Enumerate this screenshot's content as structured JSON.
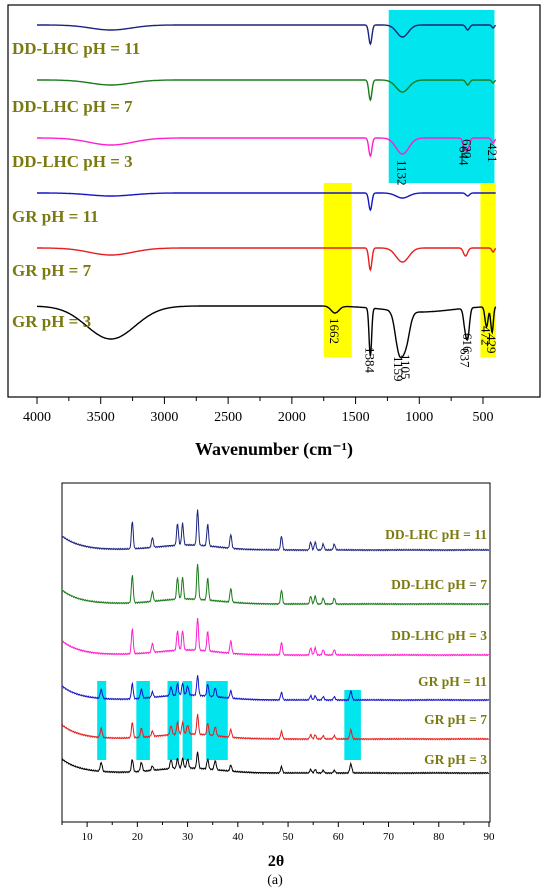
{
  "chart_data": [
    {
      "type": "line",
      "panel": "ftir",
      "xlabel": "Wavenumber (cm⁻¹)",
      "xlim": [
        4000,
        400
      ],
      "x_ticks": [
        4000,
        3500,
        3000,
        2500,
        2000,
        1500,
        1000,
        500
      ],
      "series": [
        {
          "name": "DD-LHC pH = 11",
          "color": "#1a237e"
        },
        {
          "name": "DD-LHC pH = 7",
          "color": "#1b7a1b"
        },
        {
          "name": "DD-LHC pH = 3",
          "color": "#ff1ecf"
        },
        {
          "name": "GR pH = 11",
          "color": "#1515c8"
        },
        {
          "name": "GR pH = 7",
          "color": "#e61e1e"
        },
        {
          "name": "GR pH = 3",
          "color": "#000000"
        }
      ],
      "peak_labels": [
        {
          "series": "DD-LHC pH = 3",
          "labels": [
            "1132",
            "644",
            "620",
            "421"
          ]
        },
        {
          "series": "GR pH = 3",
          "labels": [
            "1662",
            "1384",
            "1159",
            "1105",
            "637",
            "616",
            "472",
            "429"
          ]
        }
      ],
      "highlights": [
        {
          "color": "#00e5ee",
          "x_range": [
            1240,
            410
          ],
          "spans": "DD-LHC"
        },
        {
          "color": "#ffff00",
          "x_range": [
            1750,
            1530
          ],
          "spans": "GR"
        },
        {
          "color": "#ffff00",
          "x_range": [
            520,
            400
          ],
          "spans": "GR"
        }
      ]
    },
    {
      "type": "line",
      "panel": "xrd",
      "xlabel": "2θ",
      "xlim": [
        5,
        90
      ],
      "x_ticks": [
        10,
        20,
        30,
        40,
        50,
        60,
        70,
        80,
        90
      ],
      "series": [
        {
          "name": "DD-LHC pH = 11",
          "color": "#1a237e"
        },
        {
          "name": "DD-LHC pH = 7",
          "color": "#1b7a1b"
        },
        {
          "name": "DD-LHC pH = 3",
          "color": "#ff1ecf"
        },
        {
          "name": "GR pH = 11",
          "color": "#1515c8"
        },
        {
          "name": "GR pH = 7",
          "color": "#e61e1e"
        },
        {
          "name": "GR pH = 3",
          "color": "#000000"
        }
      ],
      "peaks_2theta": [
        19.0,
        23.0,
        28.0,
        29.0,
        32.0,
        34.0,
        38.6,
        48.7,
        54.5,
        55.4,
        57.0,
        59.2
      ],
      "gr_extra_peaks_2theta": [
        12.8,
        20.8,
        26.7,
        30.0,
        35.5,
        62.5
      ],
      "highlights": [
        {
          "color": "#00e5ee",
          "x_range": [
            12.0,
            13.8
          ]
        },
        {
          "color": "#00e5ee",
          "x_range": [
            19.8,
            22.5
          ]
        },
        {
          "color": "#00e5ee",
          "x_range": [
            26.0,
            28.3
          ]
        },
        {
          "color": "#00e5ee",
          "x_range": [
            29.0,
            30.9
          ]
        },
        {
          "color": "#00e5ee",
          "x_range": [
            33.7,
            38.0
          ]
        },
        {
          "color": "#00e5ee",
          "x_range": [
            61.2,
            64.5
          ]
        }
      ]
    }
  ],
  "caption": "(a)"
}
